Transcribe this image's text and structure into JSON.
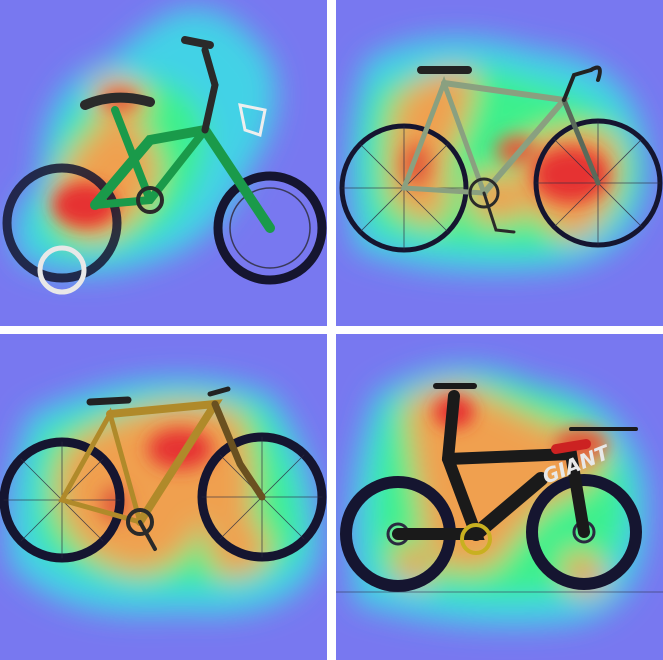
{
  "panels": [
    {
      "id": "kids-bike",
      "heat_colors": {
        "bg": "#7878f0",
        "cool": "#42d2e6",
        "mid": "#3cf08c",
        "warm": "#f0a050",
        "hot": "#e63232"
      },
      "frame_color": "#1a9a4a",
      "wheel_color": "#151530"
    },
    {
      "id": "road-bike",
      "heat_colors": {
        "bg": "#7878f0",
        "cool": "#42d2e6",
        "mid": "#3cf08c",
        "warm": "#f0a050",
        "hot": "#e63232"
      },
      "frame_color": "#8aa080",
      "wheel_color": "#151530"
    },
    {
      "id": "mountain-bike",
      "heat_colors": {
        "bg": "#7878f0",
        "cool": "#42d2e6",
        "mid": "#3cf08c",
        "warm": "#f0a050",
        "hot": "#e63232"
      },
      "frame_color": "#b08a2a",
      "wheel_color": "#151530"
    },
    {
      "id": "triathlon-bike",
      "heat_colors": {
        "bg": "#7878f0",
        "cool": "#42d2e6",
        "mid": "#3cf08c",
        "warm": "#f0a050",
        "hot": "#e63232"
      },
      "frame_color": "#1a1a1a",
      "wheel_color": "#151530",
      "logo_text": "GIANT"
    }
  ]
}
